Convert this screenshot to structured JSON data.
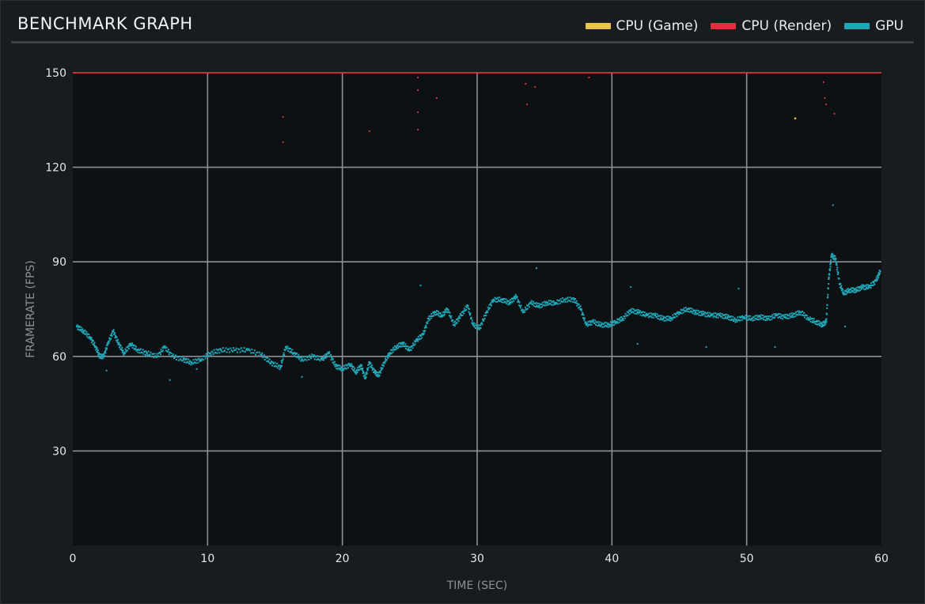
{
  "header": {
    "title": "BENCHMARK GRAPH"
  },
  "legend": [
    {
      "label": "CPU (Game)",
      "color": "#e8c24a"
    },
    {
      "label": "CPU (Render)",
      "color": "#d9323f"
    },
    {
      "label": "GPU",
      "color": "#1fa8b8"
    }
  ],
  "chart_data": {
    "type": "scatter",
    "title": "BENCHMARK GRAPH",
    "xlabel": "TIME (SEC)",
    "ylabel": "FRAMERATE (FPS)",
    "xlim": [
      0,
      60
    ],
    "ylim": [
      0,
      150
    ],
    "x_ticks": [
      "0",
      "10",
      "20",
      "30",
      "40",
      "50",
      "60"
    ],
    "y_ticks": [
      "30",
      "60",
      "90",
      "120",
      "150"
    ],
    "grid": true,
    "legend_position": "top-right",
    "series": [
      {
        "name": "CPU (Render)",
        "color": "#d9323f",
        "style": "line",
        "points": [
          [
            0,
            150
          ],
          [
            60,
            150
          ]
        ],
        "outliers": [
          [
            15.6,
            136
          ],
          [
            15.6,
            128
          ],
          [
            22,
            131.5
          ],
          [
            25.6,
            148.5
          ],
          [
            25.6,
            144.5
          ],
          [
            25.6,
            137.5
          ],
          [
            25.6,
            132
          ],
          [
            27,
            142
          ],
          [
            33.6,
            146.5
          ],
          [
            34.3,
            145.5
          ],
          [
            33.7,
            140
          ],
          [
            38.3,
            148.5
          ],
          [
            55.7,
            147
          ],
          [
            55.8,
            142
          ],
          [
            55.9,
            140
          ],
          [
            56.5,
            137
          ]
        ]
      },
      {
        "name": "CPU (Game)",
        "color": "#e8c24a",
        "style": "points",
        "points": [
          [
            53.6,
            135.5
          ]
        ]
      },
      {
        "name": "GPU",
        "color": "#1fa8b8",
        "style": "points",
        "points": [
          [
            0.3,
            69.5
          ],
          [
            0.8,
            68
          ],
          [
            1.3,
            66
          ],
          [
            1.7,
            63
          ],
          [
            2.0,
            60
          ],
          [
            2.3,
            60
          ],
          [
            2.6,
            64
          ],
          [
            3.0,
            68
          ],
          [
            3.4,
            64
          ],
          [
            3.8,
            61
          ],
          [
            4.3,
            64
          ],
          [
            4.8,
            62
          ],
          [
            5.5,
            61
          ],
          [
            6.3,
            60
          ],
          [
            6.8,
            63
          ],
          [
            7.4,
            60
          ],
          [
            8.2,
            59
          ],
          [
            8.8,
            58
          ],
          [
            9.5,
            59
          ],
          [
            10.2,
            61
          ],
          [
            11.0,
            62
          ],
          [
            12.0,
            62
          ],
          [
            13.0,
            62
          ],
          [
            14.0,
            60.5
          ],
          [
            14.7,
            58
          ],
          [
            15.4,
            56.5
          ],
          [
            15.8,
            63
          ],
          [
            16.4,
            61
          ],
          [
            17.0,
            59
          ],
          [
            17.8,
            60
          ],
          [
            18.5,
            59
          ],
          [
            19.0,
            61
          ],
          [
            19.5,
            57
          ],
          [
            20.0,
            56
          ],
          [
            20.6,
            57.5
          ],
          [
            21.0,
            55
          ],
          [
            21.4,
            57
          ],
          [
            21.7,
            53
          ],
          [
            22.0,
            58
          ],
          [
            22.4,
            55
          ],
          [
            22.7,
            54
          ],
          [
            23.1,
            58
          ],
          [
            23.5,
            61
          ],
          [
            24.0,
            63
          ],
          [
            24.5,
            64
          ],
          [
            25.0,
            62
          ],
          [
            25.5,
            65
          ],
          [
            26.0,
            67
          ],
          [
            26.4,
            72
          ],
          [
            26.9,
            74
          ],
          [
            27.4,
            73
          ],
          [
            27.8,
            75
          ],
          [
            28.3,
            70
          ],
          [
            28.8,
            73
          ],
          [
            29.3,
            76
          ],
          [
            29.7,
            70
          ],
          [
            30.2,
            69
          ],
          [
            30.7,
            74
          ],
          [
            31.2,
            78
          ],
          [
            31.8,
            78
          ],
          [
            32.4,
            77
          ],
          [
            32.9,
            79
          ],
          [
            33.4,
            74
          ],
          [
            34.0,
            77
          ],
          [
            34.6,
            76
          ],
          [
            35.2,
            77
          ],
          [
            35.8,
            77
          ],
          [
            36.5,
            78
          ],
          [
            37.2,
            78
          ],
          [
            37.7,
            75
          ],
          [
            38.1,
            70
          ],
          [
            38.6,
            71
          ],
          [
            39.2,
            70
          ],
          [
            39.8,
            70
          ],
          [
            40.3,
            71
          ],
          [
            40.8,
            72
          ],
          [
            41.4,
            74.5
          ],
          [
            42.0,
            74
          ],
          [
            42.6,
            73
          ],
          [
            43.2,
            73
          ],
          [
            43.8,
            72
          ],
          [
            44.4,
            72
          ],
          [
            45.0,
            74
          ],
          [
            45.6,
            75
          ],
          [
            46.2,
            74
          ],
          [
            46.8,
            73.5
          ],
          [
            47.4,
            73
          ],
          [
            48.0,
            73
          ],
          [
            48.6,
            72.5
          ],
          [
            49.2,
            71.5
          ],
          [
            49.8,
            72.5
          ],
          [
            50.4,
            72
          ],
          [
            51.0,
            72.5
          ],
          [
            51.6,
            72
          ],
          [
            52.2,
            73
          ],
          [
            52.8,
            72.5
          ],
          [
            53.4,
            73
          ],
          [
            54.0,
            74
          ],
          [
            54.6,
            72
          ],
          [
            55.1,
            71
          ],
          [
            55.6,
            70
          ],
          [
            55.9,
            71
          ],
          [
            56.1,
            85
          ],
          [
            56.3,
            92
          ],
          [
            56.6,
            91
          ],
          [
            56.9,
            83
          ],
          [
            57.2,
            80
          ],
          [
            57.6,
            81
          ],
          [
            58.1,
            81
          ],
          [
            58.6,
            82
          ],
          [
            59.1,
            82
          ],
          [
            59.6,
            84
          ],
          [
            59.9,
            87
          ]
        ],
        "outliers": [
          [
            2.5,
            55.5
          ],
          [
            7.2,
            52.5
          ],
          [
            9.2,
            56
          ],
          [
            15.5,
            57
          ],
          [
            17.0,
            53.5
          ],
          [
            25.8,
            82.5
          ],
          [
            34.4,
            88
          ],
          [
            41.4,
            82
          ],
          [
            41.9,
            64
          ],
          [
            47.0,
            63
          ],
          [
            49.4,
            81.5
          ],
          [
            52.1,
            63
          ],
          [
            56.4,
            108
          ],
          [
            57.3,
            69.5
          ]
        ]
      }
    ]
  }
}
